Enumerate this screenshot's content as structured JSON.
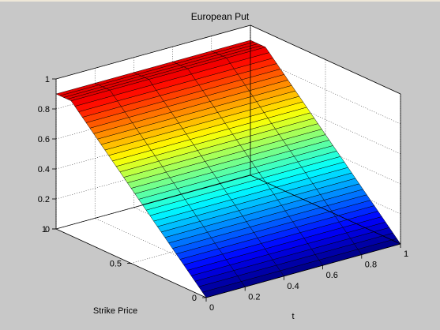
{
  "chart_data": {
    "type": "surface",
    "title": "European Put",
    "xlabel": "t",
    "ylabel": "Strike Price",
    "zlabel": "",
    "x_ticks": [
      "0",
      "0.2",
      "0.4",
      "0.6",
      "0.8",
      "1"
    ],
    "y_ticks": [
      "0",
      "0.5",
      "1"
    ],
    "z_ticks": [
      "0",
      "0.2",
      "0.4",
      "0.6",
      "0.8",
      "1"
    ],
    "xlim": [
      0,
      1
    ],
    "ylim": [
      0,
      1
    ],
    "zlim": [
      0,
      1
    ],
    "colormap": "jet",
    "grid": true,
    "surface": {
      "description_values": {
        "t": [
          0,
          0.2,
          0.4,
          0.6,
          0.8,
          1
        ],
        "strike": [
          0,
          0.1,
          0.2,
          0.3,
          0.4,
          0.5,
          0.6,
          0.7,
          0.8,
          0.9,
          1
        ],
        "value_at_strike": [
          0,
          0.1,
          0.2,
          0.3,
          0.4,
          0.5,
          0.6,
          0.7,
          0.8,
          0.9,
          0.9
        ]
      }
    }
  }
}
